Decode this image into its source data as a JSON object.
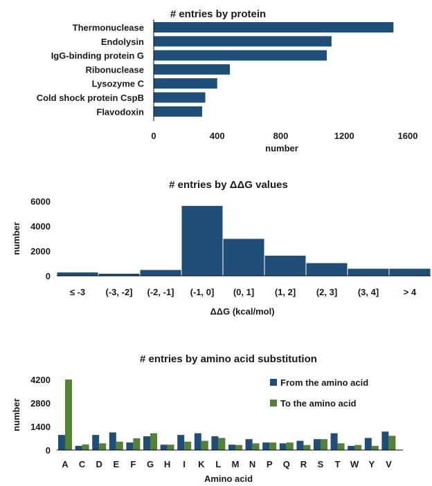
{
  "chart_data": [
    {
      "type": "bar",
      "orientation": "horizontal",
      "title": "# entries by protein",
      "xlabel": "number",
      "ylabel": "",
      "categories": [
        "Thermonuclease",
        "Endolysin",
        "IgG-binding protein G",
        "Ribonuclease",
        "Lysozyme C",
        "Cold shock protein CspB",
        "Flavodoxin"
      ],
      "values": [
        1510,
        1120,
        1090,
        480,
        400,
        325,
        305
      ],
      "xlim": [
        0,
        1600
      ],
      "xticks": [
        "0",
        "400",
        "800",
        "1200",
        "1600"
      ],
      "color": "#1f4e79",
      "grid": false
    },
    {
      "type": "bar",
      "title": "# entries by ΔΔG values",
      "xlabel": "ΔΔG (kcal/mol)",
      "ylabel": "number",
      "categories": [
        "≤ -3",
        "(-3, -2]",
        "(-2, -1]",
        "(-1, 0]",
        "(0, 1]",
        "(1, 2]",
        "(2, 3]",
        "(3, 4]",
        "> 4"
      ],
      "values": [
        300,
        200,
        500,
        5650,
        3000,
        1650,
        1050,
        600,
        600
      ],
      "ylim": [
        0,
        6000
      ],
      "yticks": [
        "0",
        "2000",
        "4000",
        "6000"
      ],
      "color": "#1f4e79",
      "grid": false
    },
    {
      "type": "bar",
      "title": "# entries by amino acid substitution",
      "xlabel": "Amino acid",
      "ylabel": "number",
      "categories": [
        "A",
        "C",
        "D",
        "E",
        "F",
        "G",
        "H",
        "I",
        "K",
        "L",
        "M",
        "N",
        "P",
        "Q",
        "R",
        "S",
        "T",
        "W",
        "Y",
        "V"
      ],
      "series": [
        {
          "name": "From the amino acid",
          "color": "#1f4e79",
          "values": [
            900,
            250,
            900,
            1050,
            450,
            820,
            320,
            900,
            1000,
            820,
            320,
            650,
            450,
            400,
            550,
            650,
            1000,
            250,
            720,
            1100
          ]
        },
        {
          "name": "To the amino acid",
          "color": "#548235",
          "values": [
            4200,
            330,
            400,
            500,
            700,
            1000,
            320,
            500,
            550,
            720,
            300,
            400,
            450,
            450,
            300,
            650,
            400,
            300,
            250,
            850
          ]
        }
      ],
      "ylim": [
        0,
        4200
      ],
      "yticks": [
        "0",
        "1400",
        "2800",
        "4200"
      ],
      "legend": "top-right",
      "grid": false
    }
  ]
}
